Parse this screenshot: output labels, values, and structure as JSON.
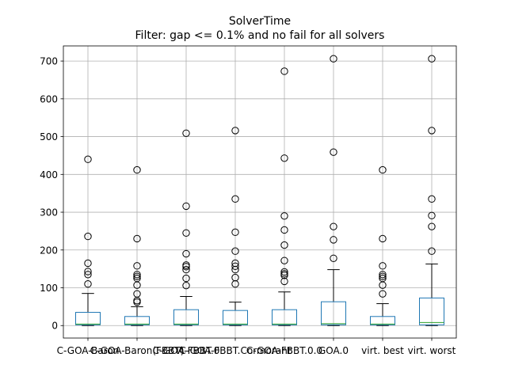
{
  "chart_data": {
    "type": "box",
    "title": "SolverTime",
    "subtitle": "Filter: gap <= 0.1% and no fail for all solvers",
    "xlabel": "",
    "ylabel": "",
    "ylim": [
      -33,
      740
    ],
    "y_ticks": [
      0,
      100,
      200,
      300,
      400,
      500,
      600,
      700
    ],
    "grid": true,
    "categories": [
      "C-GOA-Baron",
      "C-GOA-Baron(FBBT)",
      "C-GOA-FBBT.0",
      "C-GOA-FBBT.Cormorant",
      "C-GOA-FBBT.0.0",
      "GOA.0",
      "virt. best",
      "virt. worst"
    ],
    "tick_labels": [
      "C-GOA-Baron",
      "C-GOA-Baron(FBBT)",
      "C-GOA-FBBT.0",
      "C-GOA-FBBT.Cormorant",
      "C-GOA-FBBT.0.0",
      "GOA.0",
      "virt. best",
      "virt. worst"
    ],
    "boxes": [
      {
        "whisker_low": 0,
        "q1": 2,
        "median": 4,
        "q3": 35,
        "whisker_high": 85,
        "outliers": [
          110,
          135,
          143,
          165,
          236,
          440
        ]
      },
      {
        "whisker_low": 0,
        "q1": 2,
        "median": 4,
        "q3": 24,
        "whisker_high": 50,
        "outliers": [
          62,
          66,
          84,
          107,
          125,
          130,
          135,
          158,
          230,
          412
        ]
      },
      {
        "whisker_low": 0,
        "q1": 2,
        "median": 4,
        "q3": 42,
        "whisker_high": 77,
        "outliers": [
          106,
          125,
          148,
          156,
          160,
          190,
          245,
          316,
          509
        ]
      },
      {
        "whisker_low": 0,
        "q1": 2,
        "median": 4,
        "q3": 40,
        "whisker_high": 62,
        "outliers": [
          110,
          127,
          148,
          157,
          165,
          197,
          247,
          335,
          516
        ]
      },
      {
        "whisker_low": 0,
        "q1": 2,
        "median": 4,
        "q3": 42,
        "whisker_high": 89,
        "outliers": [
          117,
          133,
          137,
          142,
          172,
          213,
          253,
          290,
          443,
          673
        ]
      },
      {
        "whisker_low": 0,
        "q1": 2,
        "median": 5,
        "q3": 63,
        "whisker_high": 148,
        "outliers": [
          178,
          227,
          262,
          459,
          706
        ]
      },
      {
        "whisker_low": 0,
        "q1": 2,
        "median": 4,
        "q3": 24,
        "whisker_high": 58,
        "outliers": [
          84,
          107,
          125,
          130,
          135,
          158,
          230,
          412
        ]
      },
      {
        "whisker_low": 0,
        "q1": 2,
        "median": 8,
        "q3": 73,
        "whisker_high": 163,
        "outliers": [
          197,
          262,
          291,
          335,
          516,
          706
        ]
      }
    ],
    "colors": {
      "box": "#1f77b4",
      "median": "#2ca02c",
      "whisker": "#000000",
      "grid": "#b0b0b0",
      "outlier_edge": "#000000"
    }
  }
}
